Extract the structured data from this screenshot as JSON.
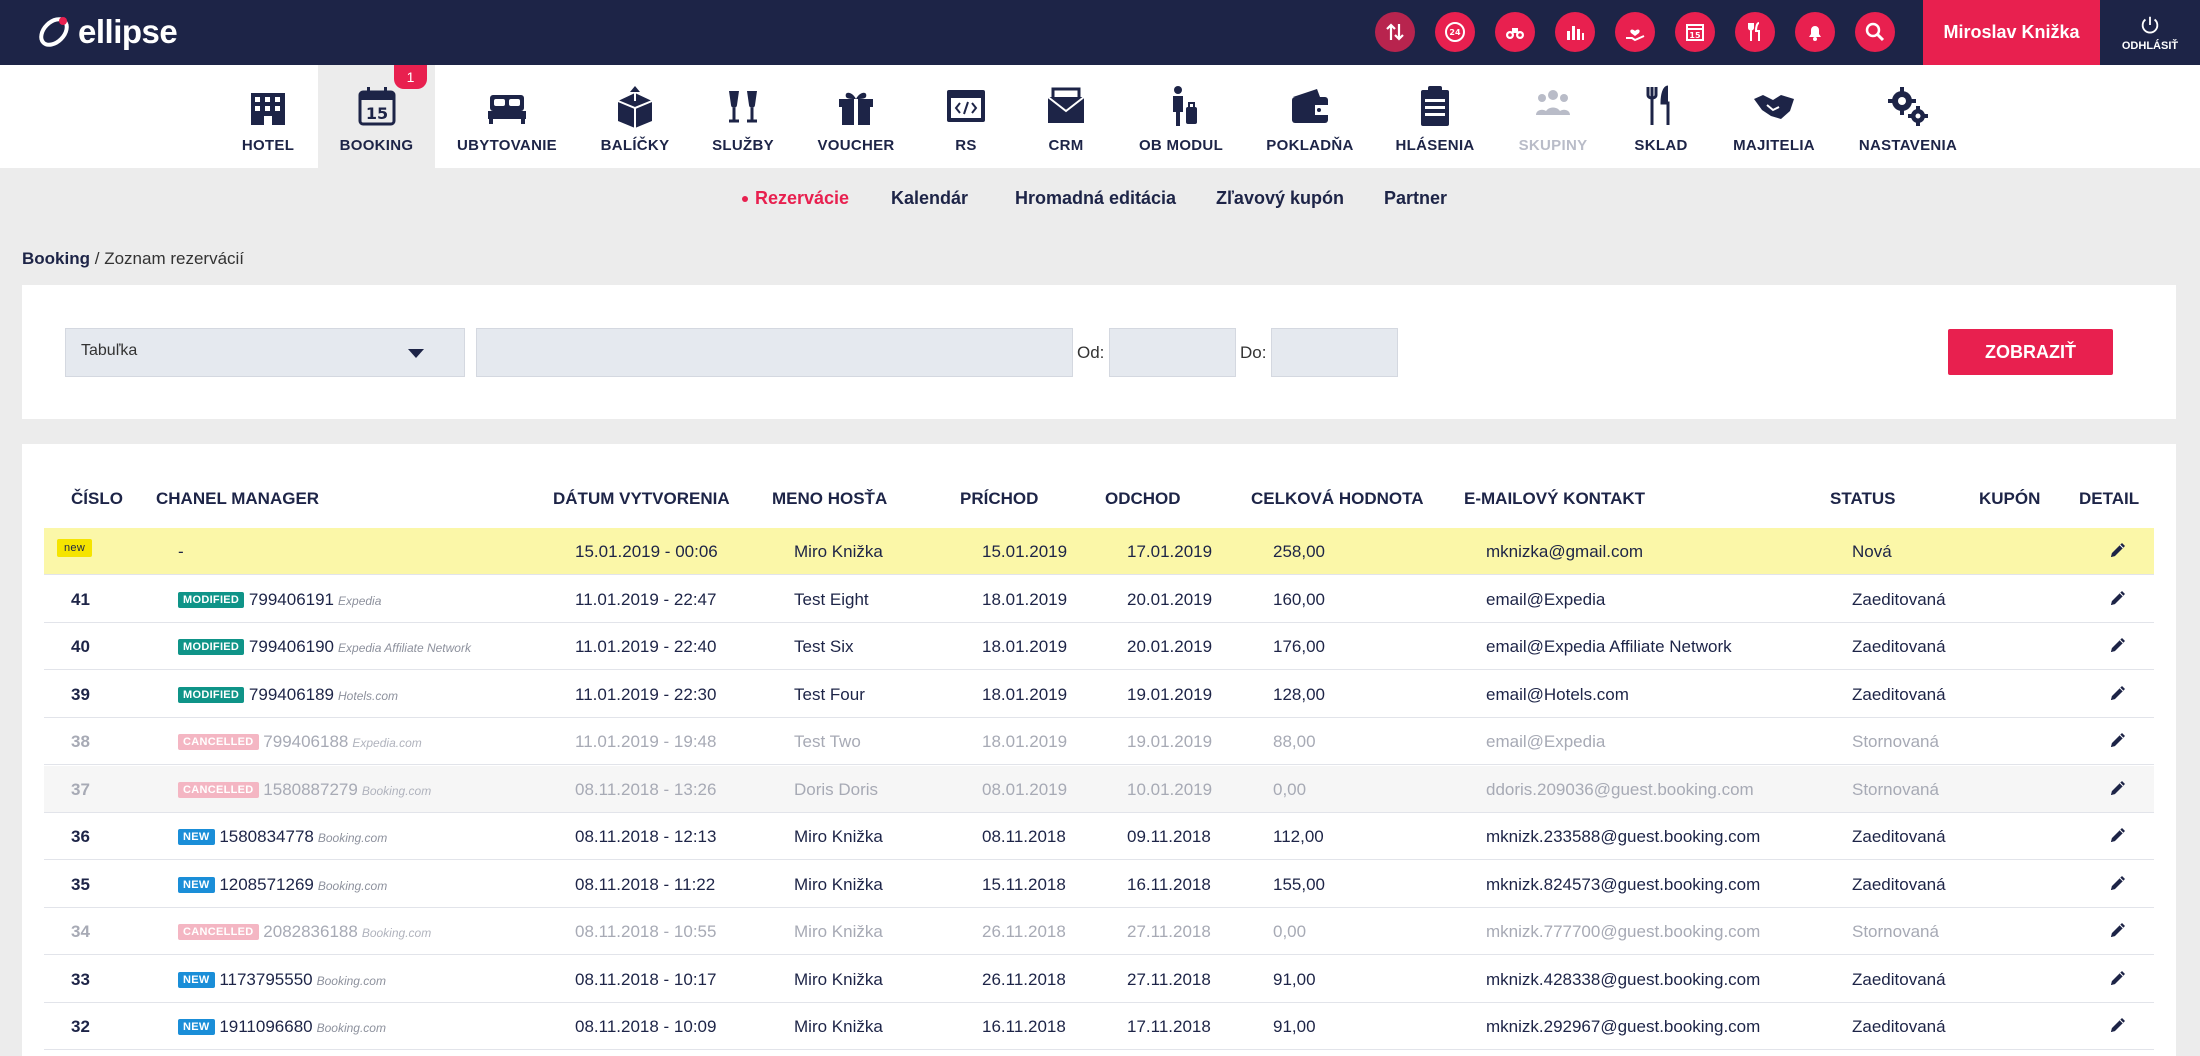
{
  "app": {
    "logo_text": "ellipse",
    "user_name": "Miroslav Knižka",
    "logout_label": "ODHLÁSIŤ",
    "top_icons": [
      "arrows-updown-icon",
      "24h-clock-icon",
      "binoculars-icon",
      "bar-chart-icon",
      "hand-heart-icon",
      "calendar-icon",
      "fork-knife-icon",
      "bell-icon",
      "search-icon"
    ],
    "top_icon_calendar_text": "15"
  },
  "nav": {
    "items": [
      {
        "label": "HOTEL",
        "icon": "hotel-building-icon"
      },
      {
        "label": "BOOKING",
        "icon": "calendar-icon",
        "active": true,
        "badge": "1",
        "icon_text": "15"
      },
      {
        "label": "UBYTOVANIE",
        "icon": "bed-icon"
      },
      {
        "label": "BALÍČKY",
        "icon": "package-icon"
      },
      {
        "label": "SLUŽBY",
        "icon": "champagne-icon"
      },
      {
        "label": "VOUCHER",
        "icon": "gift-icon"
      },
      {
        "label": "RS",
        "icon": "code-window-icon"
      },
      {
        "label": "CRM",
        "icon": "envelope-icon"
      },
      {
        "label": "OB MODUL",
        "icon": "luggage-person-icon"
      },
      {
        "label": "POKLADŇA",
        "icon": "wallet-icon"
      },
      {
        "label": "HLÁSENIA",
        "icon": "clipboard-icon"
      },
      {
        "label": "SKUPINY",
        "icon": "group-icon",
        "disabled": true
      },
      {
        "label": "SKLAD",
        "icon": "cutlery-icon"
      },
      {
        "label": "MAJITELIA",
        "icon": "handshake-icon"
      },
      {
        "label": "NASTAVENIA",
        "icon": "gears-icon"
      }
    ]
  },
  "subnav": {
    "items": [
      "Rezervácie",
      "Kalendár",
      "Hromadná editácia",
      "Zľavový kupón",
      "Partner"
    ],
    "active": "Rezervácie"
  },
  "breadcrumb": {
    "root": "Booking",
    "separator": "/",
    "current": "Zoznam rezervácií"
  },
  "filter": {
    "view_select_value": "Tabuľka",
    "search_value": "",
    "from_label": "Od:",
    "to_label": "Do:",
    "from_value": "",
    "to_value": "",
    "submit_label": "ZOBRAZIŤ"
  },
  "table": {
    "headers": {
      "cislo": "ČÍSLO",
      "chanel": "CHANEL MANAGER",
      "datum": "DÁTUM VYTVORENIA",
      "meno": "MENO HOSŤA",
      "prichod": "PRÍCHOD",
      "odchod": "ODCHOD",
      "hodnota": "CELKOVÁ HODNOTA",
      "email": "E-MAILOVÝ KONTAKT",
      "status": "STATUS",
      "kupon": "KUPÓN",
      "detail": "DETAIL"
    },
    "rows": [
      {
        "num": "new",
        "tag": "",
        "cm_id": "-",
        "cm_source": "",
        "created": "15.01.2019 - 00:06",
        "guest": "Miro Knižka",
        "arrival": "15.01.2019",
        "departure": "17.01.2019",
        "total": "258,00",
        "email": "mknizka@gmail.com",
        "status": "Nová",
        "kupon": ""
      },
      {
        "num": "41",
        "tag": "MODIFIED",
        "cm_id": "799406191",
        "cm_source": "Expedia",
        "created": "11.01.2019 - 22:47",
        "guest": "Test Eight",
        "arrival": "18.01.2019",
        "departure": "20.01.2019",
        "total": "160,00",
        "email": "email@Expedia",
        "status": "Zaeditovaná",
        "kupon": ""
      },
      {
        "num": "40",
        "tag": "MODIFIED",
        "cm_id": "799406190",
        "cm_source": "Expedia Affiliate Network",
        "created": "11.01.2019 - 22:40",
        "guest": "Test Six",
        "arrival": "18.01.2019",
        "departure": "20.01.2019",
        "total": "176,00",
        "email": "email@Expedia Affiliate Network",
        "status": "Zaeditovaná",
        "kupon": ""
      },
      {
        "num": "39",
        "tag": "MODIFIED",
        "cm_id": "799406189",
        "cm_source": "Hotels.com",
        "created": "11.01.2019 - 22:30",
        "guest": "Test Four",
        "arrival": "18.01.2019",
        "departure": "19.01.2019",
        "total": "128,00",
        "email": "email@Hotels.com",
        "status": "Zaeditovaná",
        "kupon": ""
      },
      {
        "num": "38",
        "tag": "CANCELLED",
        "cm_id": "799406188",
        "cm_source": "Expedia.com",
        "created": "11.01.2019 - 19:48",
        "guest": "Test Two",
        "arrival": "18.01.2019",
        "departure": "19.01.2019",
        "total": "88,00",
        "email": "email@Expedia",
        "status": "Stornovaná",
        "kupon": ""
      },
      {
        "num": "37",
        "tag": "CANCELLED",
        "cm_id": "1580887279",
        "cm_source": "Booking.com",
        "created": "08.11.2018 - 13:26",
        "guest": "Doris Doris",
        "arrival": "08.01.2019",
        "departure": "10.01.2019",
        "total": "0,00",
        "email": "ddoris.209036@guest.booking.com",
        "status": "Stornovaná",
        "kupon": ""
      },
      {
        "num": "36",
        "tag": "NEW",
        "cm_id": "1580834778",
        "cm_source": "Booking.com",
        "created": "08.11.2018 - 12:13",
        "guest": "Miro Knižka",
        "arrival": "08.11.2018",
        "departure": "09.11.2018",
        "total": "112,00",
        "email": "mknizk.233588@guest.booking.com",
        "status": "Zaeditovaná",
        "kupon": ""
      },
      {
        "num": "35",
        "tag": "NEW",
        "cm_id": "1208571269",
        "cm_source": "Booking.com",
        "created": "08.11.2018 - 11:22",
        "guest": "Miro Knižka",
        "arrival": "15.11.2018",
        "departure": "16.11.2018",
        "total": "155,00",
        "email": "mknizk.824573@guest.booking.com",
        "status": "Zaeditovaná",
        "kupon": ""
      },
      {
        "num": "34",
        "tag": "CANCELLED",
        "cm_id": "2082836188",
        "cm_source": "Booking.com",
        "created": "08.11.2018 - 10:55",
        "guest": "Miro Knižka",
        "arrival": "26.11.2018",
        "departure": "27.11.2018",
        "total": "0,00",
        "email": "mknizk.777700@guest.booking.com",
        "status": "Stornovaná",
        "kupon": ""
      },
      {
        "num": "33",
        "tag": "NEW",
        "cm_id": "1173795550",
        "cm_source": "Booking.com",
        "created": "08.11.2018 - 10:17",
        "guest": "Miro Knižka",
        "arrival": "26.11.2018",
        "departure": "27.11.2018",
        "total": "91,00",
        "email": "mknizk.428338@guest.booking.com",
        "status": "Zaeditovaná",
        "kupon": ""
      },
      {
        "num": "32",
        "tag": "NEW",
        "cm_id": "1911096680",
        "cm_source": "Booking.com",
        "created": "08.11.2018 - 10:09",
        "guest": "Miro Knižka",
        "arrival": "16.11.2018",
        "departure": "17.11.2018",
        "total": "91,00",
        "email": "mknizk.292967@guest.booking.com",
        "status": "Zaeditovaná",
        "kupon": ""
      }
    ]
  },
  "colors": {
    "navy": "#1d2447",
    "accent": "#e8204f",
    "modified": "#0f9488",
    "new": "#1a8ed8",
    "cancelled": "#f4b6c3",
    "highlight": "#fbf7a8"
  }
}
